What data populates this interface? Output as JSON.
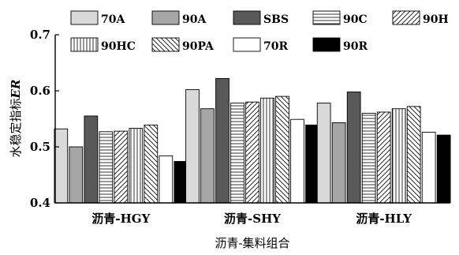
{
  "chart_data": {
    "type": "bar",
    "categories": [
      "沥青-HGY",
      "沥青-SHY",
      "沥青-HLY"
    ],
    "series": [
      {
        "name": "70A",
        "values": [
          0.532,
          0.602,
          0.578
        ],
        "fill": "#d9d9d9",
        "pattern": "solid"
      },
      {
        "name": "90A",
        "values": [
          0.5,
          0.568,
          0.543
        ],
        "fill": "#a6a6a6",
        "pattern": "solid"
      },
      {
        "name": "SBS",
        "values": [
          0.555,
          0.622,
          0.598
        ],
        "fill": "#595959",
        "pattern": "solid"
      },
      {
        "name": "90C",
        "values": [
          0.527,
          0.578,
          0.56
        ],
        "fill": "#ffffff",
        "pattern": "horizontal"
      },
      {
        "name": "90H",
        "values": [
          0.528,
          0.58,
          0.562
        ],
        "fill": "#ffffff",
        "pattern": "diagonal-up"
      },
      {
        "name": "90HC",
        "values": [
          0.533,
          0.587,
          0.568
        ],
        "fill": "#ffffff",
        "pattern": "vertical"
      },
      {
        "name": "90PA",
        "values": [
          0.539,
          0.59,
          0.572
        ],
        "fill": "#ffffff",
        "pattern": "diagonal-down"
      },
      {
        "name": "70R",
        "values": [
          0.484,
          0.549,
          0.526
        ],
        "fill": "#ffffff",
        "pattern": "solid"
      },
      {
        "name": "90R",
        "values": [
          0.474,
          0.539,
          0.521
        ],
        "fill": "#000000",
        "pattern": "solid"
      }
    ],
    "xlabel": "沥青-集料组合",
    "ylabel": "水稳定指标",
    "ylabel_italic_suffix": "ER",
    "ylim": [
      0.4,
      0.7
    ],
    "yticks": [
      "0.4",
      "0.5",
      "0.6",
      "0.7"
    ],
    "grid": false,
    "legend_position": "top"
  }
}
